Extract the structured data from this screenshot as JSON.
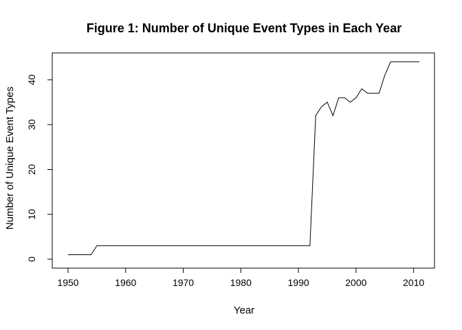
{
  "chart_data": {
    "type": "line",
    "title": "Figure 1: Number of Unique Event Types in Each Year",
    "xlabel": "Year",
    "ylabel": "Number of Unique Event Types",
    "xlim": [
      1950,
      2011
    ],
    "ylim": [
      0,
      44
    ],
    "xticks": [
      1950,
      1960,
      1970,
      1980,
      1990,
      2000,
      2010
    ],
    "yticks": [
      0,
      10,
      20,
      30,
      40
    ],
    "grid": false,
    "legend": "none",
    "x": [
      1950,
      1951,
      1952,
      1953,
      1954,
      1955,
      1956,
      1957,
      1958,
      1959,
      1960,
      1961,
      1962,
      1963,
      1964,
      1965,
      1966,
      1967,
      1968,
      1969,
      1970,
      1971,
      1972,
      1973,
      1974,
      1975,
      1976,
      1977,
      1978,
      1979,
      1980,
      1981,
      1982,
      1983,
      1984,
      1985,
      1986,
      1987,
      1988,
      1989,
      1990,
      1991,
      1992,
      1993,
      1994,
      1995,
      1996,
      1997,
      1998,
      1999,
      2000,
      2001,
      2002,
      2003,
      2004,
      2005,
      2006,
      2007,
      2008,
      2009,
      2010,
      2011
    ],
    "y": [
      1,
      1,
      1,
      1,
      1,
      3,
      3,
      3,
      3,
      3,
      3,
      3,
      3,
      3,
      3,
      3,
      3,
      3,
      3,
      3,
      3,
      3,
      3,
      3,
      3,
      3,
      3,
      3,
      3,
      3,
      3,
      3,
      3,
      3,
      3,
      3,
      3,
      3,
      3,
      3,
      3,
      3,
      3,
      32,
      34,
      35,
      32,
      36,
      36,
      35,
      36,
      38,
      37,
      37,
      37,
      41,
      44,
      44,
      44,
      44,
      44,
      44
    ]
  }
}
